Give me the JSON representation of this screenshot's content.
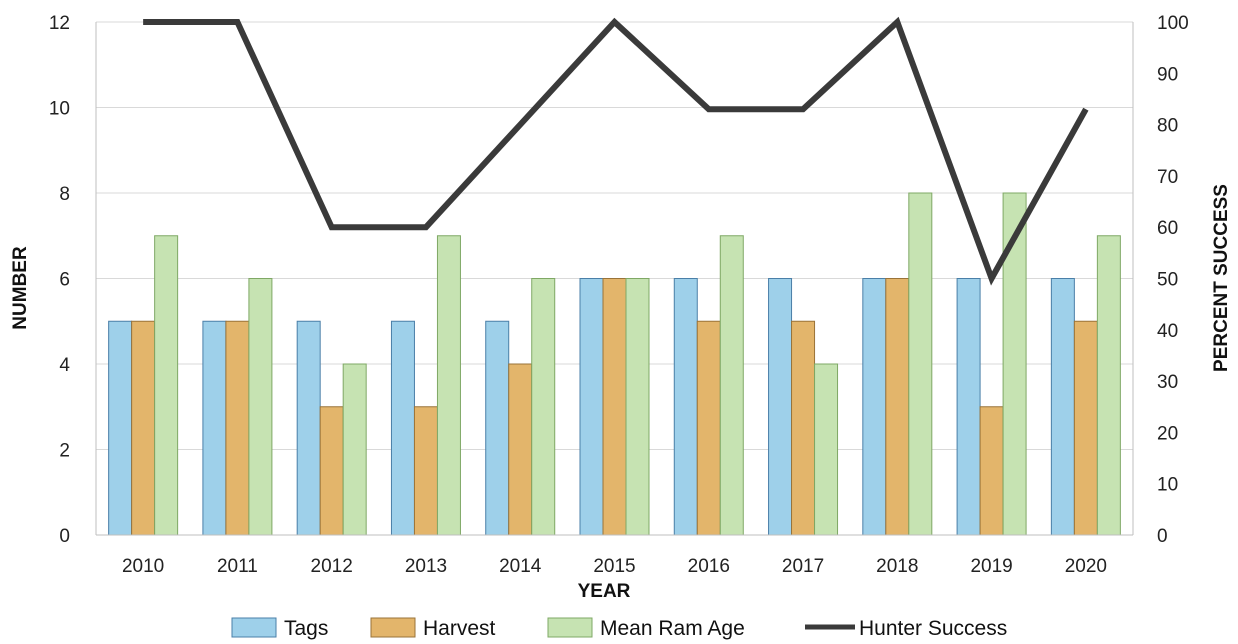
{
  "chart_data": {
    "type": "bar",
    "categories": [
      "2010",
      "2011",
      "2012",
      "2013",
      "2014",
      "2015",
      "2016",
      "2017",
      "2018",
      "2019",
      "2020"
    ],
    "series": [
      {
        "name": "Tags",
        "axis": "left",
        "kind": "bar",
        "color": "#9ED0EA",
        "values": [
          5,
          5,
          5,
          5,
          5,
          6,
          6,
          6,
          6,
          6,
          6
        ]
      },
      {
        "name": "Harvest",
        "axis": "left",
        "kind": "bar",
        "color": "#E3B56B",
        "values": [
          5,
          5,
          3,
          3,
          4,
          6,
          5,
          5,
          6,
          3,
          5
        ]
      },
      {
        "name": "Mean Ram Age",
        "axis": "left",
        "kind": "bar",
        "color": "#C6E3B2",
        "values": [
          7,
          6,
          4,
          7,
          6,
          6,
          7,
          4,
          8,
          8,
          7
        ]
      },
      {
        "name": "Hunter Success",
        "axis": "right",
        "kind": "line",
        "color": "#3A3A3A",
        "values": [
          100,
          100,
          60,
          60,
          80,
          100,
          83,
          83,
          100,
          50,
          83
        ]
      }
    ],
    "xlabel": "YEAR",
    "ylabel": "NUMBER",
    "y2label": "PERCENT SUCCESS",
    "ylim": [
      0,
      12
    ],
    "yticks": [
      "0",
      "2",
      "4",
      "6",
      "8",
      "10",
      "12"
    ],
    "y2lim": [
      0,
      100
    ],
    "y2ticks": [
      "0",
      "10",
      "20",
      "30",
      "40",
      "50",
      "60",
      "70",
      "80",
      "90",
      "100"
    ],
    "grid": true,
    "legend_position": "bottom"
  }
}
